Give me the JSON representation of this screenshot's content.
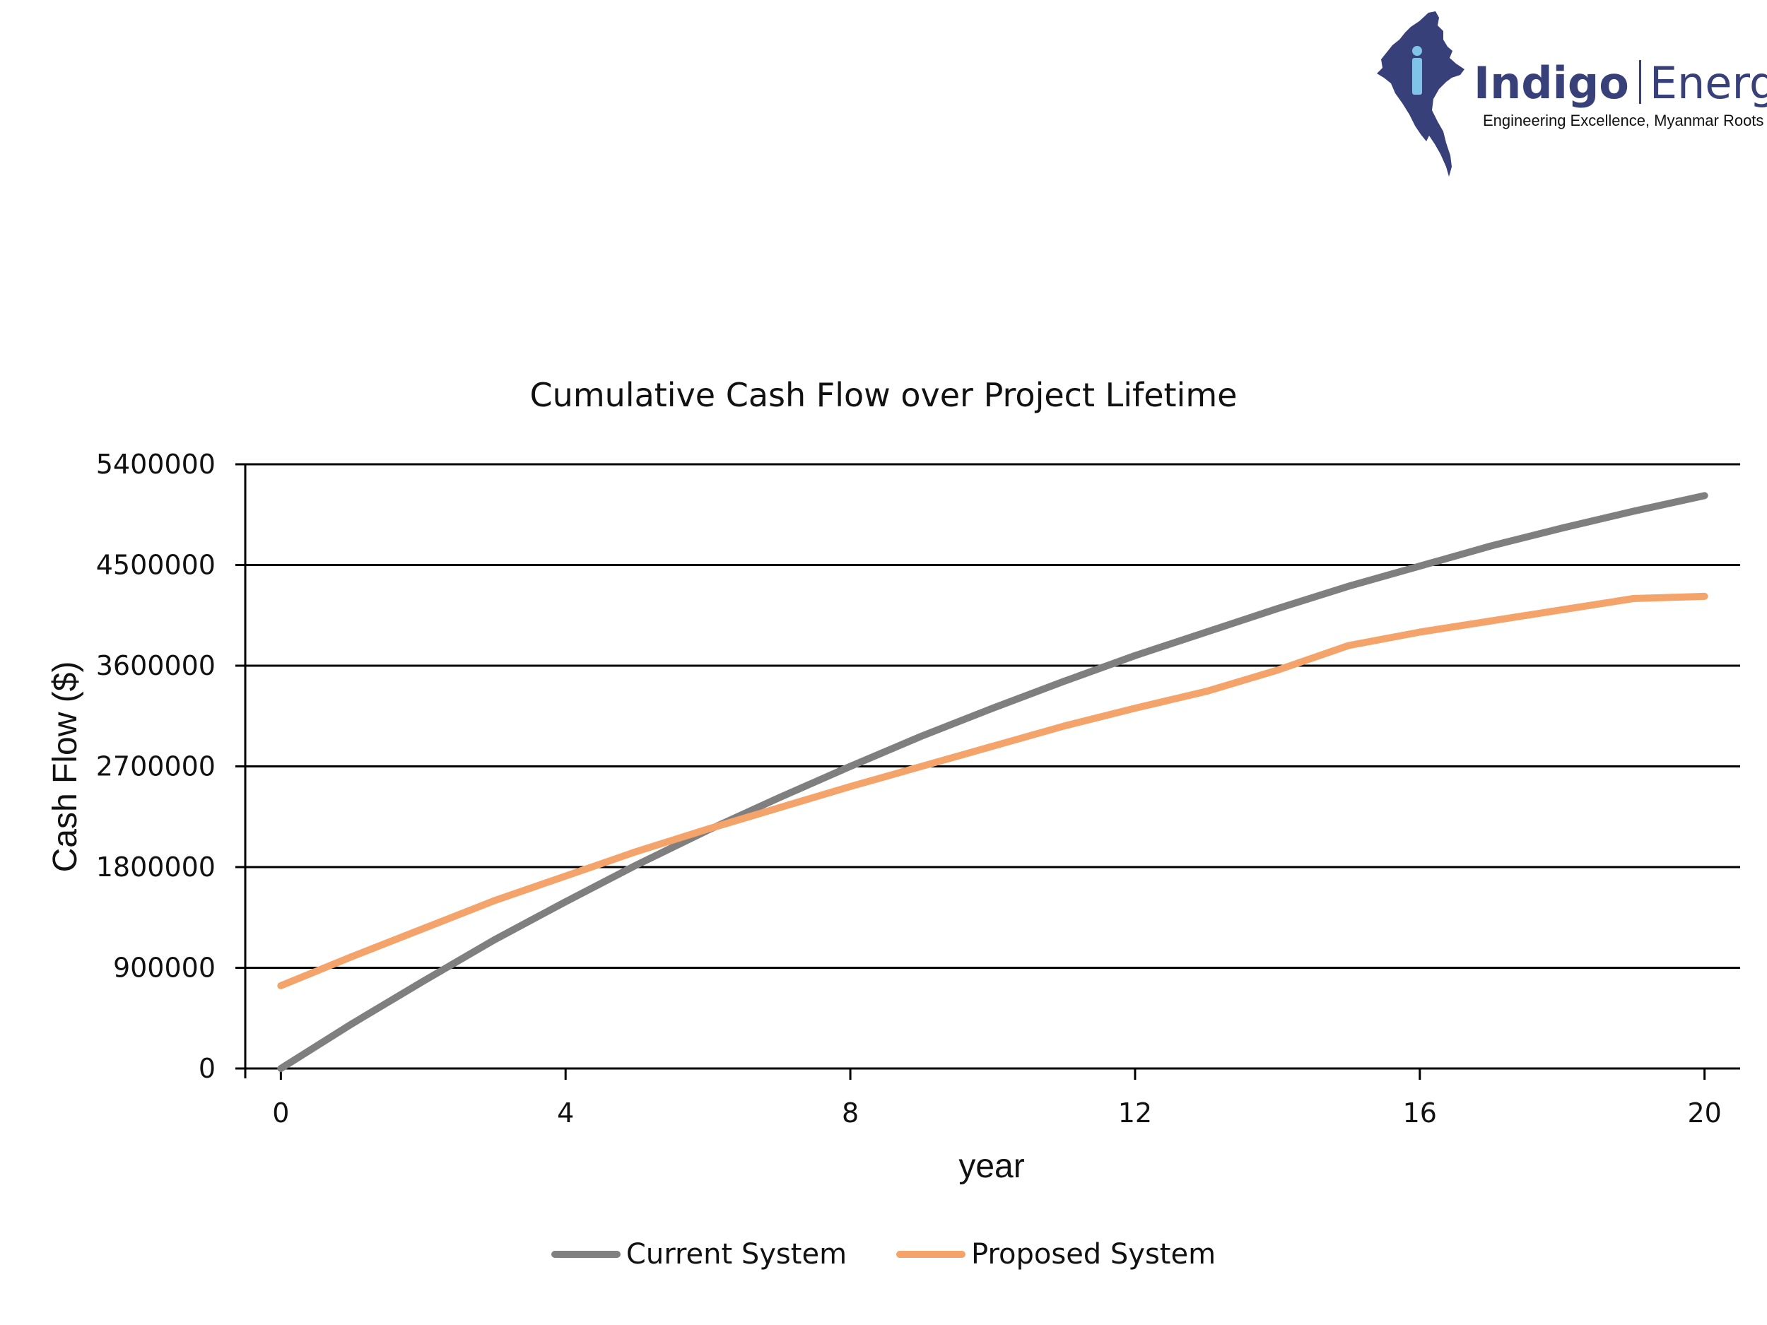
{
  "logo": {
    "brand_bold": "Indigo",
    "brand_light": "Energy",
    "tagline": "Engineering Excellence, Myanmar Roots",
    "icon": "myanmar-map-icon",
    "colors": {
      "map": "#38407a",
      "accent": "#7fc4e8"
    }
  },
  "chart_data": {
    "type": "line",
    "title": "Cumulative Cash Flow over Project Lifetime",
    "xlabel": "year",
    "ylabel": "Cash Flow ($)",
    "xlim": [
      -0.5,
      20.5
    ],
    "ylim": [
      0,
      5400000
    ],
    "xticks": [
      0,
      4,
      8,
      12,
      16,
      20
    ],
    "yticks": [
      0,
      900000,
      1800000,
      2700000,
      3600000,
      4500000,
      5400000
    ],
    "ytick_labels": [
      "0",
      "900000",
      "1800000",
      "2700000",
      "3600000",
      "4500000",
      "5400000"
    ],
    "grid": "horizontal",
    "legend": "bottom",
    "x": [
      0,
      1,
      2,
      3,
      4,
      5,
      6,
      7,
      8,
      9,
      10,
      11,
      12,
      13,
      14,
      15,
      16,
      17,
      18,
      19,
      20
    ],
    "series": [
      {
        "name": "Current System",
        "color": "#7f7f7f",
        "values": [
          0,
          400000,
          780000,
          1150000,
          1490000,
          1820000,
          2130000,
          2420000,
          2700000,
          2970000,
          3220000,
          3460000,
          3690000,
          3900000,
          4110000,
          4310000,
          4490000,
          4670000,
          4830000,
          4980000,
          5120000
        ]
      },
      {
        "name": "Proposed System",
        "color": "#f4a36a",
        "values": [
          740000,
          1000000,
          1250000,
          1500000,
          1720000,
          1940000,
          2140000,
          2330000,
          2520000,
          2700000,
          2880000,
          3060000,
          3220000,
          3370000,
          3560000,
          3780000,
          3900000,
          4000000,
          4100000,
          4200000,
          4220000
        ]
      }
    ]
  }
}
